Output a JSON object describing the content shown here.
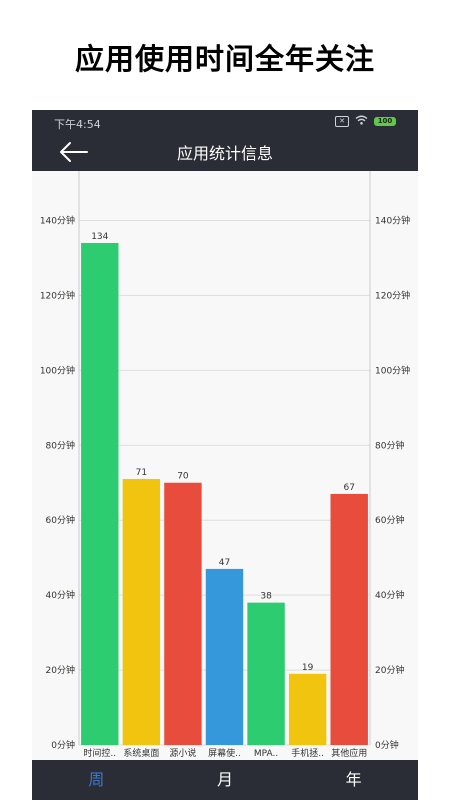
{
  "headline": "应用使用时间全年关注",
  "status_bar": {
    "time": "下午4:54",
    "battery": "100"
  },
  "app_bar": {
    "title": "应用统计信息"
  },
  "tabs": [
    {
      "label": "周",
      "active": true
    },
    {
      "label": "月",
      "active": false
    },
    {
      "label": "年",
      "active": false
    }
  ],
  "colors": {
    "green": "#2ecc71",
    "yellow": "#f1c40f",
    "red": "#e74c3c",
    "blue": "#3498db",
    "bar_bg": "#2a2d35",
    "active_tab": "#3b78c9"
  },
  "chart_data": {
    "type": "bar",
    "categories": [
      "时间控..",
      "系统桌面",
      "源小说",
      "屏幕使..",
      "MPA..",
      "手机拯..",
      "其他应用"
    ],
    "values": [
      134,
      71,
      70,
      47,
      38,
      19,
      67
    ],
    "bar_colors": [
      "#2ecc71",
      "#f1c40f",
      "#e74c3c",
      "#3498db",
      "#2ecc71",
      "#f1c40f",
      "#e74c3c"
    ],
    "ylim": [
      0,
      150
    ],
    "yticks": [
      0,
      20,
      40,
      60,
      80,
      100,
      120,
      140
    ],
    "ytick_labels": [
      "0分钟",
      "20分钟",
      "40分钟",
      "60分钟",
      "80分钟",
      "100分钟",
      "120分钟",
      "140分钟"
    ],
    "grid": true,
    "dual_y_axis": true
  }
}
